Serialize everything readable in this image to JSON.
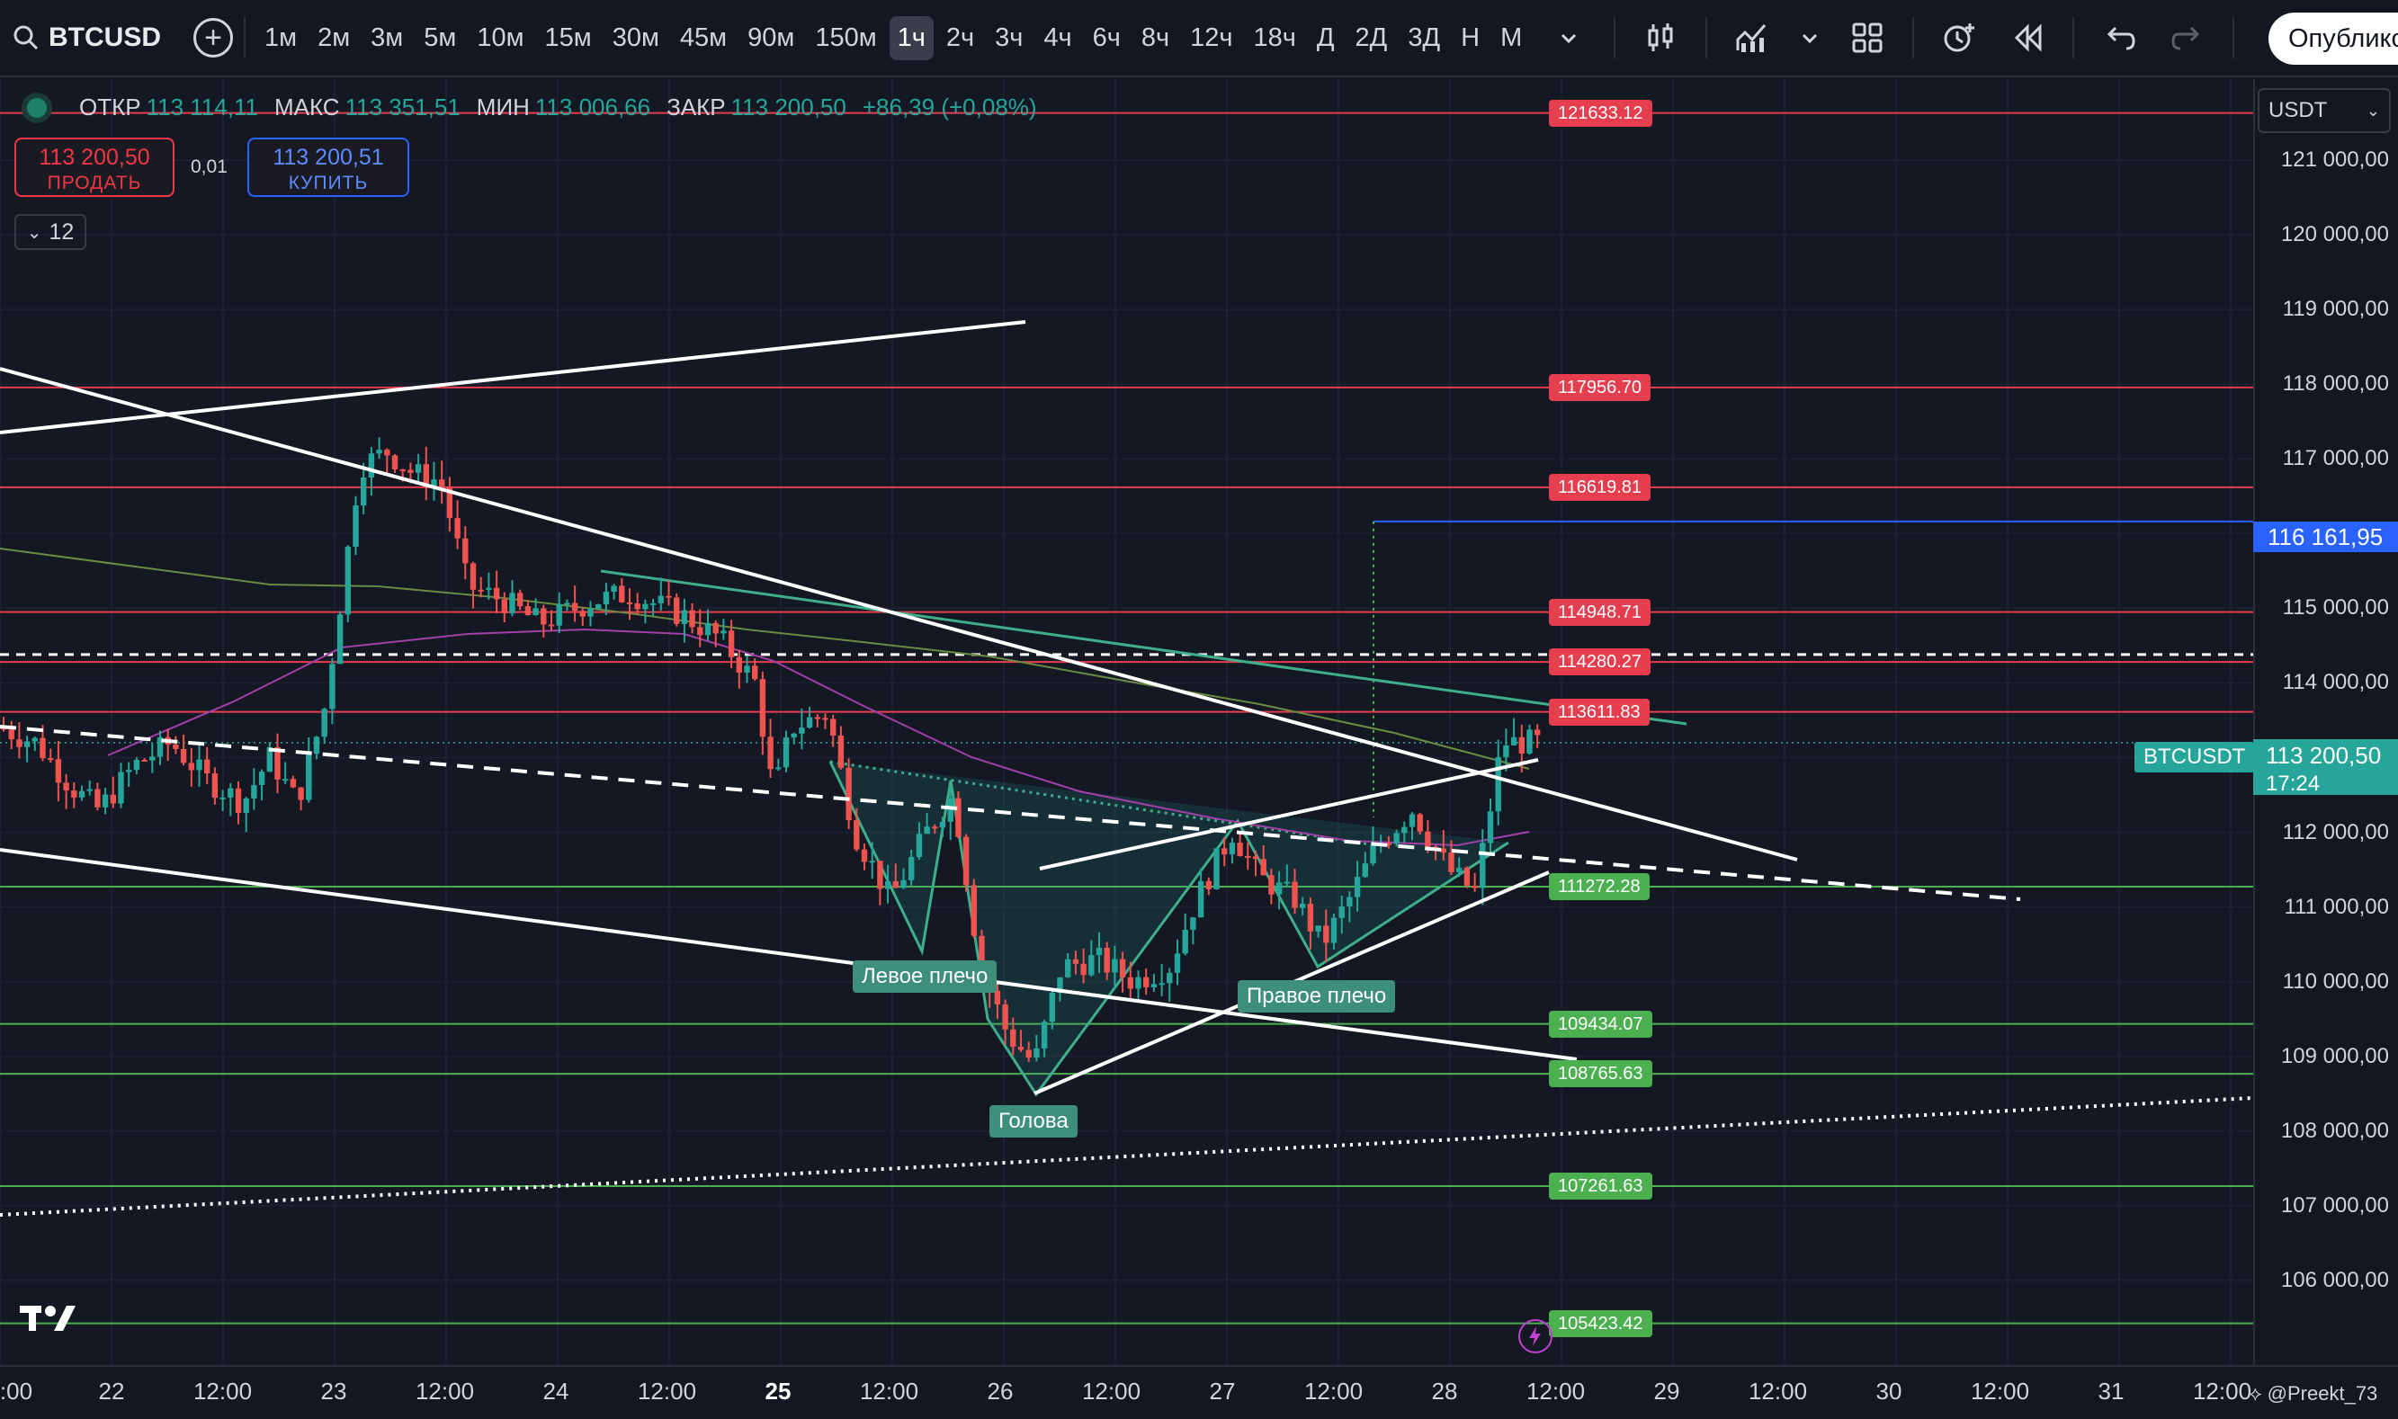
{
  "toolbar": {
    "symbol": "BTCUSD",
    "intervals": [
      "1м",
      "2м",
      "3м",
      "5м",
      "10м",
      "15м",
      "30м",
      "45м",
      "90м",
      "150м",
      "1ч",
      "2ч",
      "3ч",
      "4ч",
      "6ч",
      "8ч",
      "12ч",
      "18ч",
      "Д",
      "2Д",
      "3Д",
      "Н",
      "М"
    ],
    "active_interval": "1ч",
    "publish_label": "Опублико"
  },
  "legend": {
    "open_label": "ОТКР",
    "open": "113 114,11",
    "high_label": "МАКС",
    "high": "113 351,51",
    "low_label": "МИН",
    "low": "113 006,66",
    "close_label": "ЗАКР",
    "close": "113 200,50",
    "change": "+86,39 (+0,08%)"
  },
  "trade": {
    "sell_price": "113 200,50",
    "sell_label": "ПРОДАТЬ",
    "spread": "0,01",
    "buy_price": "113 200,51",
    "buy_label": "КУПИТЬ"
  },
  "indicators_count": "12",
  "levels": [
    {
      "price": "121633.12",
      "color": "red"
    },
    {
      "price": "117956.70",
      "color": "red"
    },
    {
      "price": "116619.81",
      "color": "red"
    },
    {
      "price": "114948.71",
      "color": "red"
    },
    {
      "price": "114280.27",
      "color": "red"
    },
    {
      "price": "113611.83",
      "color": "red"
    },
    {
      "price": "111272.28",
      "color": "green"
    },
    {
      "price": "109434.07",
      "color": "green"
    },
    {
      "price": "108765.63",
      "color": "green"
    },
    {
      "price": "107261.63",
      "color": "green"
    },
    {
      "price": "105423.42",
      "color": "green"
    }
  ],
  "pattern_labels": {
    "left_shoulder": "Левое плечо",
    "head": "Голова",
    "right_shoulder": "Правое плечо"
  },
  "price_scale": {
    "currency": "USDT",
    "ticks": [
      "121 000,00",
      "120 000,00",
      "119 000,00",
      "118 000,00",
      "117 000,00",
      "116 000,00",
      "115 000,00",
      "114 000,00",
      "112 000,00",
      "111 000,00",
      "110 000,00",
      "109 000,00",
      "108 000,00",
      "107 000,00",
      "106 000,00"
    ],
    "target_price": "116 161,95",
    "current_price": "113 200,50",
    "countdown": "17:24",
    "symbol_tag": "BTCUSDT"
  },
  "time_axis": {
    "ticks": [
      ":00",
      "22",
      "12:00",
      "23",
      "12:00",
      "24",
      "12:00",
      "25",
      "12:00",
      "26",
      "12:00",
      "27",
      "12:00",
      "28",
      "12:00",
      "29",
      "12:00",
      "30",
      "12:00",
      "31",
      "12:00"
    ],
    "bold": [
      "25"
    ]
  },
  "watermark": "@Preekt_73",
  "colors": {
    "up": "#26a69a",
    "down": "#ef5350",
    "background": "#141823",
    "resistance": "#e53e4f",
    "support": "#4caf50",
    "target": "#2962ff"
  }
}
